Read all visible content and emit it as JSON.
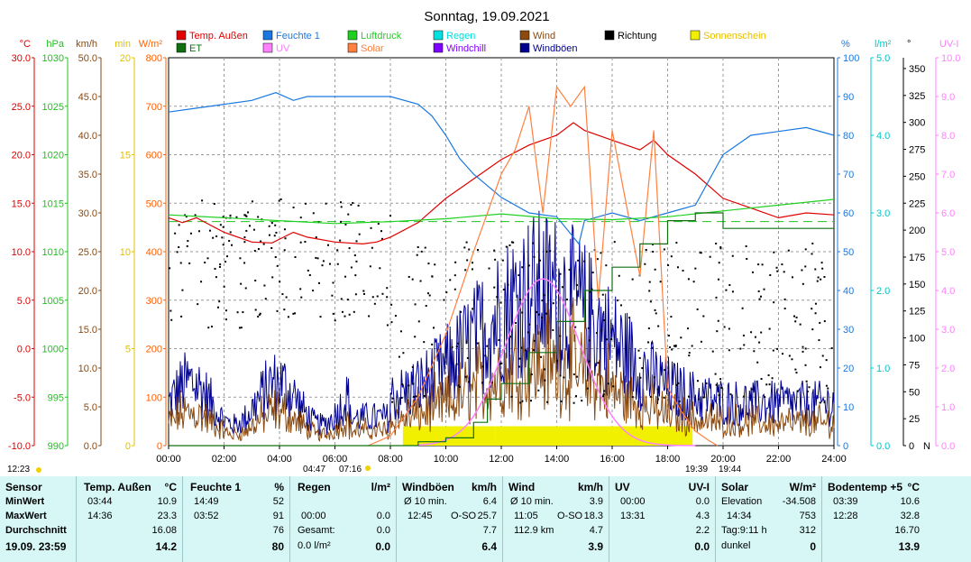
{
  "chart_data": {
    "type": "line",
    "title": "Sonntag, 19.09.2021",
    "legend": [
      {
        "name": "Temp. Außen",
        "color": "#e00000"
      },
      {
        "name": "Feuchte 1",
        "color": "#1a78e0"
      },
      {
        "name": "Luftdruck",
        "color": "#20d020"
      },
      {
        "name": "Regen",
        "color": "#00e0e0"
      },
      {
        "name": "Wind",
        "color": "#8a4a10"
      },
      {
        "name": "Richtung",
        "color": "#000000"
      },
      {
        "name": "Sonnenschein",
        "color": "#f0f000"
      },
      {
        "name": "ET",
        "color": "#107010"
      },
      {
        "name": "UV",
        "color": "#ff80ff"
      },
      {
        "name": "Solar",
        "color": "#ff8040"
      },
      {
        "name": "Windchill",
        "color": "#8000ff"
      },
      {
        "name": "Windböen",
        "color": "#000090"
      }
    ],
    "x_ticks": [
      "00:00",
      "02:00",
      "04:00",
      "06:00",
      "08:00",
      "10:00",
      "12:00",
      "14:00",
      "16:00",
      "18:00",
      "20:00",
      "22:00",
      "24:00"
    ],
    "left_axes": [
      {
        "unit": "°C",
        "color": "#e00000",
        "ticks": [
          "30.0",
          "25.0",
          "20.0",
          "15.0",
          "10.0",
          "5.0",
          "0.0",
          "-5.0",
          "-10.0"
        ]
      },
      {
        "unit": "hPa",
        "color": "#20c020",
        "ticks": [
          "1030",
          "1025",
          "1020",
          "1015",
          "1010",
          "1005",
          "1000",
          "995",
          "990"
        ]
      },
      {
        "unit": "km/h",
        "color": "#8a4a10",
        "ticks": [
          "50.0",
          "45.0",
          "40.0",
          "35.0",
          "30.0",
          "25.0",
          "20.0",
          "15.0",
          "10.0",
          "5.0",
          "0.0"
        ]
      },
      {
        "unit": "min",
        "color": "#e0c000",
        "ticks": [
          "20",
          "15",
          "10",
          "5",
          "0"
        ]
      },
      {
        "unit": "W/m²",
        "color": "#ff6000",
        "ticks": [
          "800",
          "700",
          "600",
          "500",
          "400",
          "300",
          "200",
          "100",
          "0"
        ]
      }
    ],
    "right_axes": [
      {
        "unit": "%",
        "color": "#1a78e0",
        "ticks": [
          "100",
          "90",
          "80",
          "70",
          "60",
          "50",
          "40",
          "30",
          "20",
          "10",
          "0"
        ]
      },
      {
        "unit": "l/m²",
        "color": "#00c8c8",
        "ticks": [
          "5.0",
          "4.0",
          "3.0",
          "2.0",
          "1.0",
          "0.0"
        ]
      },
      {
        "unit": "°",
        "color": "#000000",
        "ticks": [
          "350",
          "325",
          "300",
          "275",
          "250",
          "225",
          "200",
          "175",
          "150",
          "125",
          "100",
          "75",
          "50",
          "25",
          "0",
          "N"
        ]
      },
      {
        "unit": "UV-I",
        "color": "#ff80ff",
        "ticks": [
          "10.0",
          "9.0",
          "8.0",
          "7.0",
          "6.0",
          "5.0",
          "4.0",
          "3.0",
          "2.0",
          "1.0",
          "0.0"
        ]
      }
    ],
    "series": [
      {
        "name": "Temp. Außen",
        "unit": "°C",
        "x_hours": [
          0,
          0.5,
          1,
          2,
          3,
          3.73,
          4.5,
          5,
          6,
          7,
          7.5,
          8,
          9,
          10,
          11,
          12,
          13,
          14,
          14.6,
          15,
          16,
          17,
          17.5,
          18,
          19,
          20,
          21,
          22,
          23,
          24
        ],
        "values": [
          13.5,
          13.0,
          13.5,
          12.0,
          11.0,
          10.9,
          12.0,
          11.5,
          11.0,
          10.8,
          11.0,
          11.5,
          13.0,
          15.5,
          17.5,
          19.5,
          21.0,
          22.0,
          23.3,
          22.5,
          21.5,
          20.5,
          21.5,
          20.0,
          18.0,
          15.5,
          14.5,
          13.5,
          14.0,
          13.8
        ]
      },
      {
        "name": "Feuchte 1",
        "unit": "%",
        "x_hours": [
          0,
          1,
          2,
          3,
          3.87,
          4.5,
          5,
          6,
          7,
          8,
          9,
          9.5,
          10,
          10.5,
          11,
          12,
          13,
          14,
          14.8,
          15,
          16,
          17,
          18,
          19,
          20,
          21,
          22,
          23,
          24
        ],
        "values": [
          86,
          87,
          88,
          89,
          91,
          89,
          90,
          90,
          90,
          90,
          88,
          85,
          80,
          74,
          70,
          64,
          60,
          59,
          52,
          58,
          60,
          58,
          60,
          62,
          75,
          80,
          81,
          82,
          80
        ]
      },
      {
        "name": "Luftdruck",
        "unit": "hPa",
        "x_hours": [
          0,
          2,
          4,
          6,
          8,
          10,
          12,
          14,
          16,
          18,
          20,
          22,
          24
        ],
        "values": [
          1013.8,
          1013.5,
          1013.2,
          1012.9,
          1013.1,
          1013.4,
          1013.9,
          1013.4,
          1013.3,
          1013.6,
          1014.2,
          1014.8,
          1015.4
        ]
      },
      {
        "name": "Solar",
        "unit": "W/m²",
        "x_hours": [
          7.2,
          8,
          9,
          10,
          11,
          12,
          12.5,
          13,
          13.5,
          14,
          14.5,
          15,
          15.5,
          16,
          17,
          17.5,
          18,
          18.5,
          19,
          19.5,
          19.8
        ],
        "values": [
          0,
          20,
          100,
          230,
          400,
          560,
          610,
          700,
          480,
          740,
          700,
          740,
          300,
          650,
          350,
          650,
          120,
          70,
          30,
          10,
          0
        ]
      },
      {
        "name": "ET",
        "unit": "l/m²",
        "x_hours": [
          0,
          8,
          9,
          10,
          11,
          11.5,
          12,
          13,
          14,
          15,
          16,
          17,
          18,
          19,
          20,
          24
        ],
        "values": [
          0,
          0,
          0.05,
          0.1,
          0.3,
          0.6,
          0.8,
          1.2,
          1.6,
          2.0,
          2.3,
          2.6,
          2.9,
          3.0,
          2.8,
          2.8
        ]
      }
    ]
  },
  "markers": {
    "moonrise": "12:23",
    "sunrise_twilight": "04:47",
    "sunrise": "07:16",
    "sunset": "19:39",
    "sunset_twilight": "19:44"
  },
  "table": {
    "sensor": {
      "header": "Sensor",
      "rows": [
        "MinWert",
        "MaxWert",
        "Durchschnitt"
      ],
      "date": "19.09.  23:59"
    },
    "temp": {
      "header": "Temp. Außen",
      "unit": "°C",
      "min_time": "03:44",
      "min": "10.9",
      "max_time": "14:36",
      "max": "23.3",
      "avg": "16.08",
      "current": "14.2"
    },
    "feuchte": {
      "header": "Feuchte 1",
      "unit": "%",
      "min_time": "14:49",
      "min": "52",
      "max_time": "03:52",
      "max": "91",
      "avg": "76",
      "current": "80"
    },
    "regen": {
      "header": "Regen",
      "unit": "l/m²",
      "r2_time": "00:00",
      "r2_val": "0.0",
      "r3_label": "Gesamt:",
      "r3_val": "0.0",
      "r4_label": "0.0 l/m²",
      "current": "0.0"
    },
    "windboen": {
      "header": "Windböen",
      "unit": "km/h",
      "r1_label": "Ø 10 min.",
      "r1_val": "6.4",
      "r2_time": "12:45",
      "r2_dir": "O-SO",
      "r2_val": "25.7",
      "avg": "7.7",
      "current": "6.4"
    },
    "wind": {
      "header": "Wind",
      "unit": "km/h",
      "r1_label": "Ø 10 min.",
      "r1_val": "3.9",
      "r2_time": "11:05",
      "r2_dir": "O-SO",
      "r2_val": "18.3",
      "r3_label": "112.9 km",
      "r3_val": "4.7",
      "current": "3.9"
    },
    "uv": {
      "header": "UV",
      "unit": "UV-I",
      "r1_time": "00:00",
      "r1_val": "0.0",
      "r2_time": "13:31",
      "r2_val": "4.3",
      "avg": "2.2",
      "current": "0.0"
    },
    "solar": {
      "header": "Solar",
      "unit": "W/m²",
      "r1_label": "Elevation",
      "r1_val": "-34.508",
      "r2_time": "14:34",
      "r2_val": "753",
      "r3_label": "Tag:9:11 h",
      "r3_val": "312",
      "r4_label": "dunkel",
      "current": "0"
    },
    "boden": {
      "header": "Bodentemp +5",
      "unit": "°C",
      "min_time": "03:39",
      "min": "10.6",
      "max_time": "12:28",
      "max": "32.8",
      "avg": "16.70",
      "current": "13.9"
    }
  }
}
